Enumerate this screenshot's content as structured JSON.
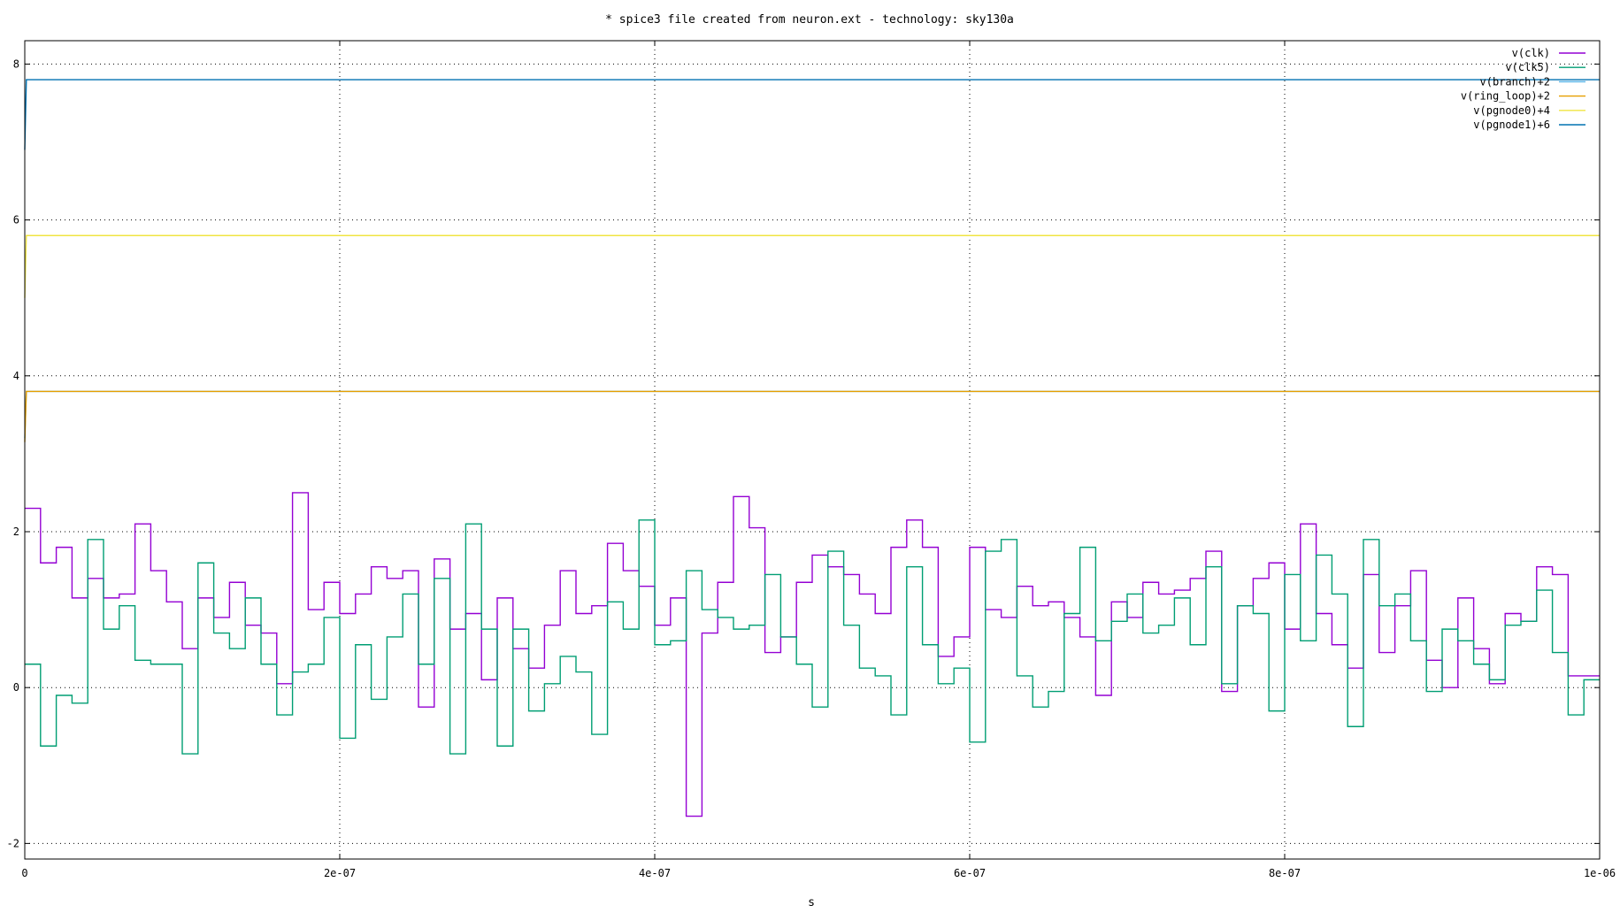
{
  "chart_data": {
    "type": "line",
    "title": "* spice3 file created from neuron.ext - technology: sky130a",
    "xlabel": "s",
    "ylabel": "",
    "xlim": [
      0,
      1e-06
    ],
    "ylim": [
      -2.2,
      8.3
    ],
    "grid": true,
    "legend_position": "top-right",
    "x_ticks": [
      {
        "value": 0,
        "label": "0"
      },
      {
        "value": 2e-07,
        "label": "2e-07"
      },
      {
        "value": 4e-07,
        "label": "4e-07"
      },
      {
        "value": 6e-07,
        "label": "6e-07"
      },
      {
        "value": 8e-07,
        "label": "8e-07"
      },
      {
        "value": 1e-06,
        "label": "1e-06"
      }
    ],
    "y_ticks": [
      {
        "value": -2,
        "label": "-2"
      },
      {
        "value": 0,
        "label": "0"
      },
      {
        "value": 2,
        "label": "2"
      },
      {
        "value": 4,
        "label": "4"
      },
      {
        "value": 6,
        "label": "6"
      },
      {
        "value": 8,
        "label": "8"
      }
    ],
    "series": [
      {
        "name": "v(clk)",
        "color": "#9400d3",
        "step": true,
        "x": [
          0,
          1e-08,
          2e-08,
          3e-08,
          4e-08,
          5e-08,
          6e-08,
          7e-08,
          8e-08,
          9e-08,
          1e-07,
          1.1e-07,
          1.2e-07,
          1.3e-07,
          1.4e-07,
          1.5e-07,
          1.6e-07,
          1.7e-07,
          1.8e-07,
          1.9e-07,
          2e-07,
          2.1e-07,
          2.2e-07,
          2.3e-07,
          2.4e-07,
          2.5e-07,
          2.6e-07,
          2.7e-07,
          2.8e-07,
          2.9e-07,
          3e-07,
          3.1e-07,
          3.2e-07,
          3.3e-07,
          3.4e-07,
          3.5e-07,
          3.6e-07,
          3.7e-07,
          3.8e-07,
          3.9e-07,
          4e-07,
          4.1e-07,
          4.2e-07,
          4.3e-07,
          4.4e-07,
          4.5e-07,
          4.6e-07,
          4.7e-07,
          4.8e-07,
          4.9e-07,
          5e-07,
          5.1e-07,
          5.2e-07,
          5.3e-07,
          5.4e-07,
          5.5e-07,
          5.6e-07,
          5.7e-07,
          5.8e-07,
          5.9e-07,
          6e-07,
          6.1e-07,
          6.2e-07,
          6.3e-07,
          6.4e-07,
          6.5e-07,
          6.6e-07,
          6.7e-07,
          6.8e-07,
          6.9e-07,
          7e-07,
          7.1e-07,
          7.2e-07,
          7.3e-07,
          7.4e-07,
          7.5e-07,
          7.6e-07,
          7.7e-07,
          7.8e-07,
          7.9e-07,
          8e-07,
          8.1e-07,
          8.2e-07,
          8.3e-07,
          8.4e-07,
          8.5e-07,
          8.6e-07,
          8.7e-07,
          8.8e-07,
          8.9e-07,
          9e-07,
          9.1e-07,
          9.2e-07,
          9.3e-07,
          9.4e-07,
          9.5e-07,
          9.6e-07,
          9.7e-07,
          9.8e-07,
          9.9e-07,
          1e-06
        ],
        "y": [
          2.3,
          1.6,
          1.8,
          1.15,
          1.4,
          1.15,
          1.2,
          2.1,
          1.5,
          1.1,
          0.5,
          1.15,
          0.9,
          1.35,
          0.8,
          0.7,
          0.05,
          2.5,
          1.0,
          1.35,
          0.95,
          1.2,
          1.55,
          1.4,
          1.5,
          -0.25,
          1.65,
          0.75,
          0.95,
          0.1,
          1.15,
          0.5,
          0.25,
          0.8,
          1.5,
          0.95,
          1.05,
          1.85,
          1.5,
          1.3,
          0.8,
          1.15,
          -1.65,
          0.7,
          1.35,
          2.45,
          2.05,
          0.45,
          0.65,
          1.35,
          1.7,
          1.55,
          1.45,
          1.2,
          0.95,
          1.8,
          2.15,
          1.8,
          0.4,
          0.65,
          1.8,
          1.0,
          0.9,
          1.3,
          1.05,
          1.1,
          0.9,
          0.65,
          -0.1,
          1.1,
          0.9,
          1.35,
          1.2,
          1.25,
          1.4,
          1.75,
          -0.05,
          1.05,
          1.4,
          1.6,
          0.75,
          2.1,
          0.95,
          0.55,
          0.25,
          1.45,
          0.45,
          1.05,
          1.5,
          0.35,
          0.0,
          1.15,
          0.5,
          0.05,
          0.95,
          0.85,
          1.55,
          1.45,
          0.15,
          0.15,
          0.15
        ]
      },
      {
        "name": "v(clk5)",
        "color": "#009e73",
        "step": true,
        "x": [
          0,
          1e-08,
          2e-08,
          3e-08,
          4e-08,
          5e-08,
          6e-08,
          7e-08,
          8e-08,
          9e-08,
          1e-07,
          1.1e-07,
          1.2e-07,
          1.3e-07,
          1.4e-07,
          1.5e-07,
          1.6e-07,
          1.7e-07,
          1.8e-07,
          1.9e-07,
          2e-07,
          2.1e-07,
          2.2e-07,
          2.3e-07,
          2.4e-07,
          2.5e-07,
          2.6e-07,
          2.7e-07,
          2.8e-07,
          2.9e-07,
          3e-07,
          3.1e-07,
          3.2e-07,
          3.3e-07,
          3.4e-07,
          3.5e-07,
          3.6e-07,
          3.7e-07,
          3.8e-07,
          3.9e-07,
          4e-07,
          4.1e-07,
          4.2e-07,
          4.3e-07,
          4.4e-07,
          4.5e-07,
          4.6e-07,
          4.7e-07,
          4.8e-07,
          4.9e-07,
          5e-07,
          5.1e-07,
          5.2e-07,
          5.3e-07,
          5.4e-07,
          5.5e-07,
          5.6e-07,
          5.7e-07,
          5.8e-07,
          5.9e-07,
          6e-07,
          6.1e-07,
          6.2e-07,
          6.3e-07,
          6.4e-07,
          6.5e-07,
          6.6e-07,
          6.7e-07,
          6.8e-07,
          6.9e-07,
          7e-07,
          7.1e-07,
          7.2e-07,
          7.3e-07,
          7.4e-07,
          7.5e-07,
          7.6e-07,
          7.7e-07,
          7.8e-07,
          7.9e-07,
          8e-07,
          8.1e-07,
          8.2e-07,
          8.3e-07,
          8.4e-07,
          8.5e-07,
          8.6e-07,
          8.7e-07,
          8.8e-07,
          8.9e-07,
          9e-07,
          9.1e-07,
          9.2e-07,
          9.3e-07,
          9.4e-07,
          9.5e-07,
          9.6e-07,
          9.7e-07,
          9.8e-07,
          9.9e-07,
          1e-06
        ],
        "y": [
          0.3,
          -0.75,
          -0.1,
          -0.2,
          1.9,
          0.75,
          1.05,
          0.35,
          0.3,
          0.3,
          -0.85,
          1.6,
          0.7,
          0.5,
          1.15,
          0.3,
          -0.35,
          0.2,
          0.3,
          0.9,
          -0.65,
          0.55,
          -0.15,
          0.65,
          1.2,
          0.3,
          1.4,
          -0.85,
          2.1,
          0.75,
          -0.75,
          0.75,
          -0.3,
          0.05,
          0.4,
          0.2,
          -0.6,
          1.1,
          0.75,
          2.15,
          0.55,
          0.6,
          1.5,
          1.0,
          0.9,
          0.75,
          0.8,
          1.45,
          0.65,
          0.3,
          -0.25,
          1.75,
          0.8,
          0.25,
          0.15,
          -0.35,
          1.55,
          0.55,
          0.05,
          0.25,
          -0.7,
          1.75,
          1.9,
          0.15,
          -0.25,
          -0.05,
          0.95,
          1.8,
          0.6,
          0.85,
          1.2,
          0.7,
          0.8,
          1.15,
          0.55,
          1.55,
          0.05,
          1.05,
          0.95,
          -0.3,
          1.45,
          0.6,
          1.7,
          1.2,
          -0.5,
          1.9,
          1.05,
          1.2,
          0.6,
          -0.05,
          0.75,
          0.6,
          0.3,
          0.1,
          0.8,
          0.85,
          1.25,
          0.45,
          -0.35,
          0.1,
          0.1
        ]
      },
      {
        "name": "v(branch)+2",
        "color": "#56b4e9",
        "step": false,
        "x": [
          0,
          1e-09,
          1e-06
        ],
        "y": [
          3.2,
          3.8,
          3.8
        ]
      },
      {
        "name": "v(ring_loop)+2",
        "color": "#e69f00",
        "step": false,
        "x": [
          0,
          1e-09,
          1e-06
        ],
        "y": [
          3.15,
          3.8,
          3.8
        ]
      },
      {
        "name": "v(pgnode0)+4",
        "color": "#f0e442",
        "step": false,
        "x": [
          0,
          1e-09,
          1e-06
        ],
        "y": [
          5.0,
          5.8,
          5.8
        ]
      },
      {
        "name": "v(pgnode1)+6",
        "color": "#0072b2",
        "step": false,
        "x": [
          0,
          1e-09,
          1e-06
        ],
        "y": [
          6.9,
          7.8,
          7.8
        ]
      }
    ]
  }
}
